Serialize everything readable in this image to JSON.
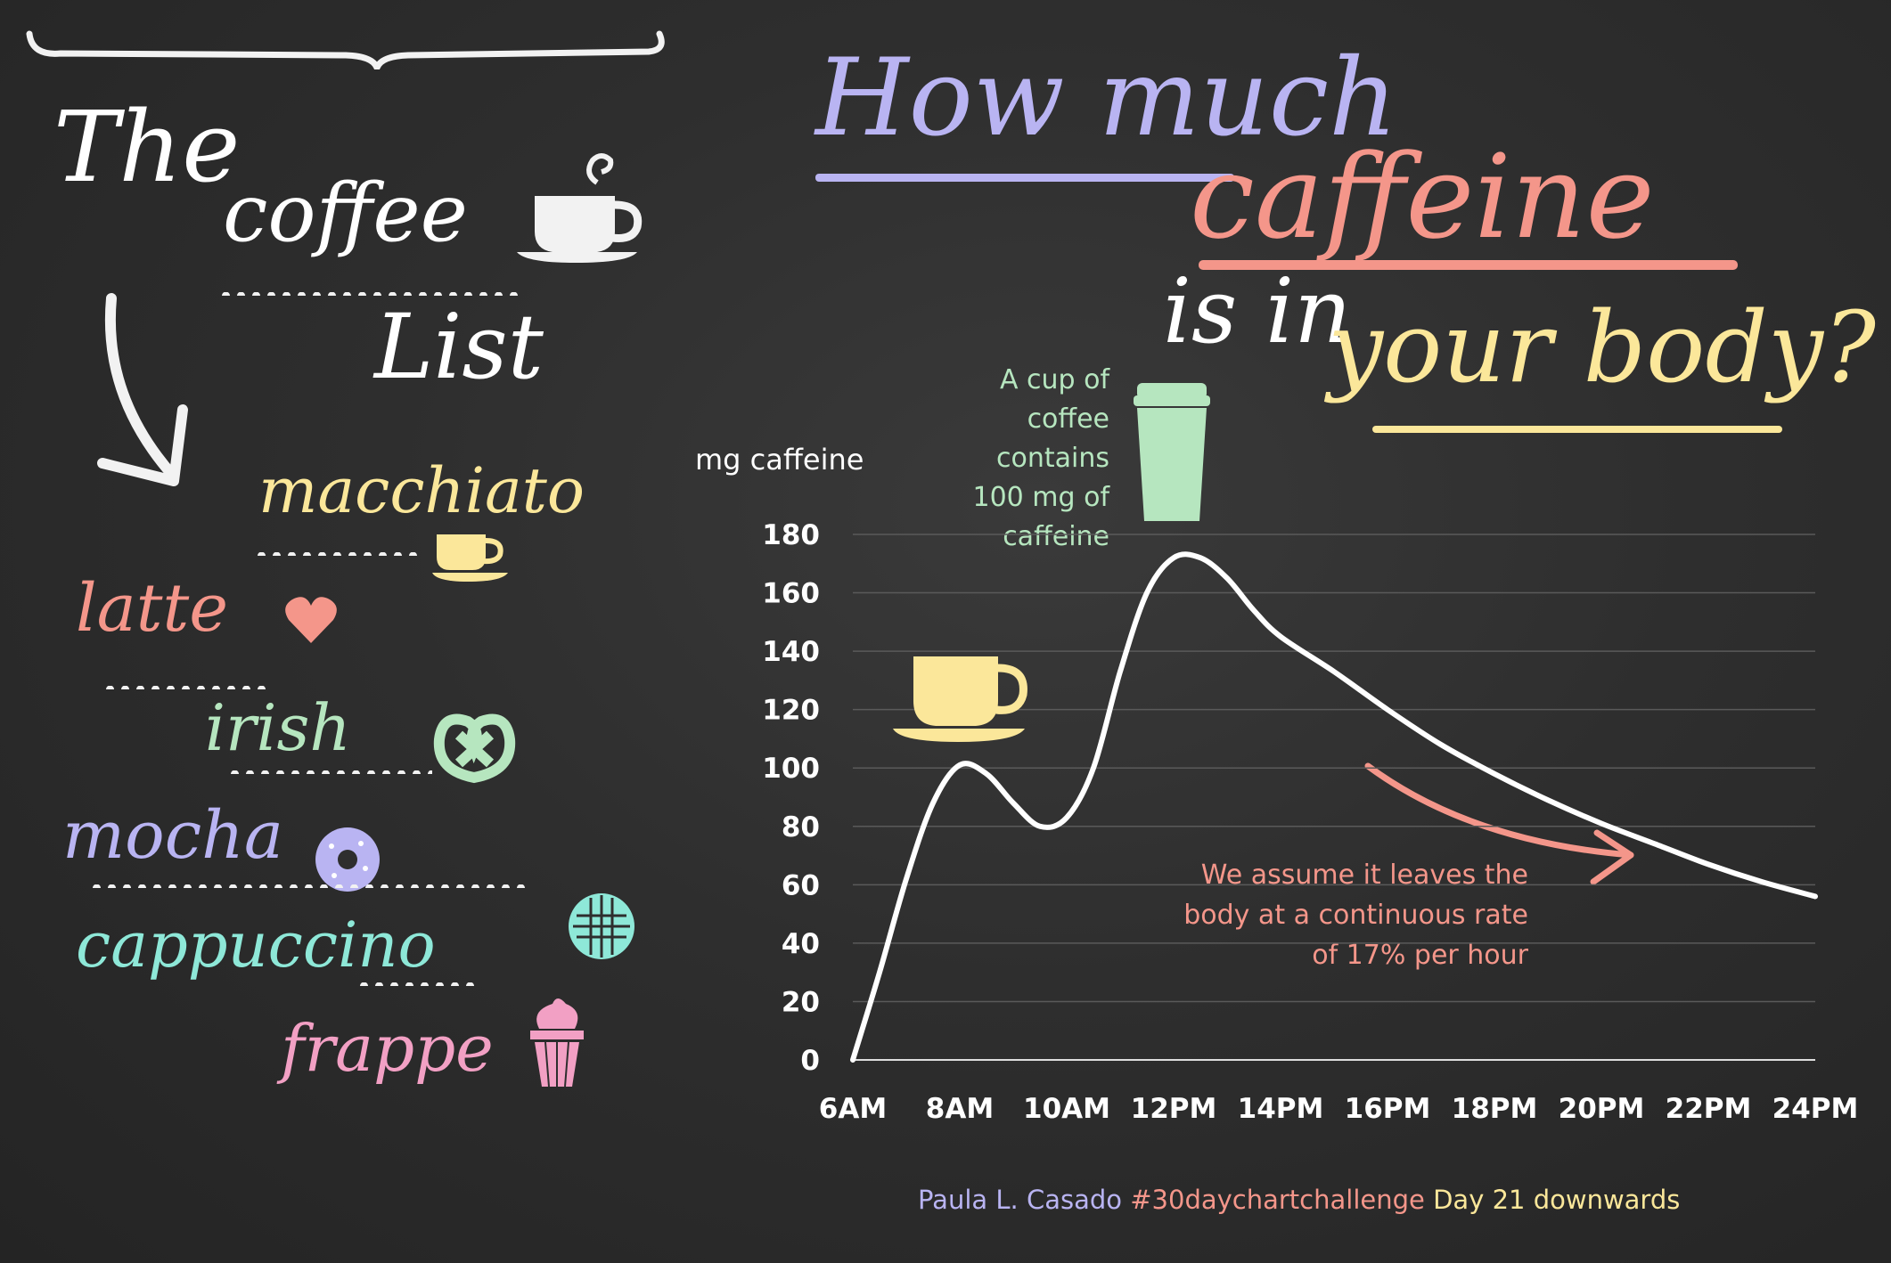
{
  "list": {
    "title_the": "The",
    "title_coffee": "coffee",
    "title_list": "List",
    "items": [
      {
        "label": "macchiato",
        "color": "#fbe79a",
        "icon": "small-cup-icon"
      },
      {
        "label": "latte",
        "color": "#f4968a",
        "icon": "heart-icon"
      },
      {
        "label": "irish",
        "color": "#b6e6bf",
        "icon": "pretzel-icon"
      },
      {
        "label": "mocha",
        "color": "#b9b4f2",
        "icon": "donut-icon"
      },
      {
        "label": "cappuccino",
        "color": "#8ee8d8",
        "icon": "waffle-icon"
      },
      {
        "label": "frappe",
        "color": "#f2a0c4",
        "icon": "ice-cream-icon"
      }
    ]
  },
  "headline": {
    "line1": "How much",
    "line2": "caffeine",
    "line3a": "is in",
    "line3b": "your body?",
    "colors": {
      "line1": "#b9b4f2",
      "line2": "#f4968a",
      "line3a": "#ffffff",
      "line3b": "#fbe79a"
    }
  },
  "annotations": {
    "cup_note": [
      "A cup of",
      "coffee",
      "contains",
      "100 mg of",
      "caffeine"
    ],
    "cup_note_color": "#b6e6bf",
    "decay_note": [
      "We assume it leaves the",
      "body at a continuous rate",
      "of 17% per hour"
    ],
    "decay_note_color": "#f4968a"
  },
  "chart_data": {
    "type": "line",
    "ylabel": "mg caffeine",
    "x_tick_labels": [
      "6AM",
      "8AM",
      "10AM",
      "12PM",
      "14PM",
      "16PM",
      "18PM",
      "20PM",
      "22PM",
      "24PM"
    ],
    "x_tick_values": [
      6,
      8,
      10,
      12,
      14,
      16,
      18,
      20,
      22,
      24
    ],
    "y_tick_values": [
      0,
      20,
      40,
      60,
      80,
      100,
      120,
      140,
      160,
      180
    ],
    "xlim": [
      6,
      24
    ],
    "ylim": [
      0,
      180
    ],
    "grid": true,
    "line_color": "#ffffff",
    "series": [
      {
        "x": [
          6,
          6.5,
          7,
          7.5,
          8,
          8.5,
          9,
          9.5,
          10,
          10.5,
          11,
          11.5,
          12,
          12.5,
          13,
          13.5,
          14,
          15,
          16,
          17,
          18,
          19,
          20,
          21,
          22,
          23,
          24
        ],
        "values": [
          0,
          30,
          62,
          88,
          101,
          98,
          88,
          80,
          83,
          100,
          133,
          160,
          172,
          172,
          165,
          154,
          145,
          133,
          120,
          108,
          98,
          89,
          81,
          74,
          67,
          61,
          56
        ]
      }
    ]
  },
  "credit": {
    "author": "Paula L. Casado",
    "hashtag": "#30daychartchallenge",
    "day": "Day 21 downwards",
    "colors": {
      "author": "#b9b4f2",
      "hashtag": "#f4968a",
      "day": "#fbe79a"
    }
  }
}
